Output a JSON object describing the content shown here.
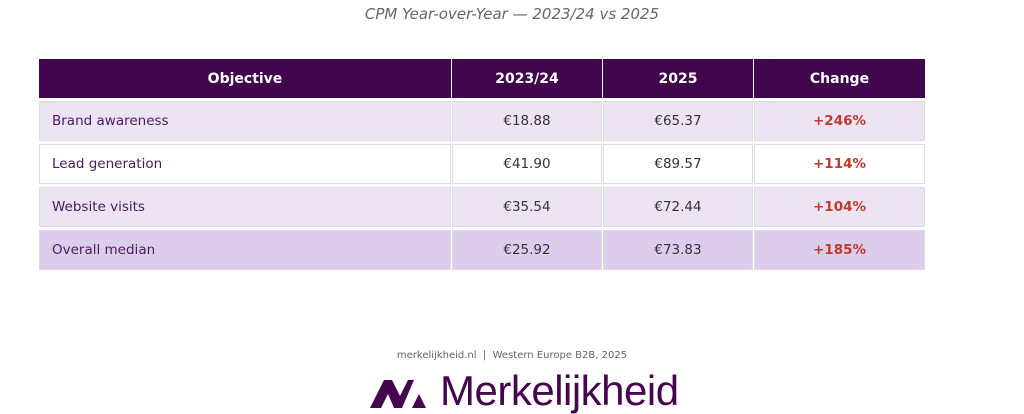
{
  "title": "CPM Year-over-Year — 2023/24 vs 2025",
  "table": {
    "headers": [
      "Objective",
      "2023/24",
      "2025",
      "Change"
    ],
    "rows": [
      {
        "objective": "Brand awareness",
        "y2023": "€18.88",
        "y2025": "€65.37",
        "change": "+246%"
      },
      {
        "objective": "Lead generation",
        "y2023": "€41.90",
        "y2025": "€89.57",
        "change": "+114%"
      },
      {
        "objective": "Website visits",
        "y2023": "€35.54",
        "y2025": "€72.44",
        "change": "+104%"
      },
      {
        "objective": "Overall median",
        "y2023": "€25.92",
        "y2025": "€73.83",
        "change": "+185%"
      }
    ]
  },
  "source": "merkelijkheid.nl  |  Western Europe B2B, 2025",
  "logo": {
    "text": "Merkelijkheid",
    "color": "#45064f"
  },
  "colors": {
    "header": "#42064f",
    "change": "#c0392b"
  }
}
